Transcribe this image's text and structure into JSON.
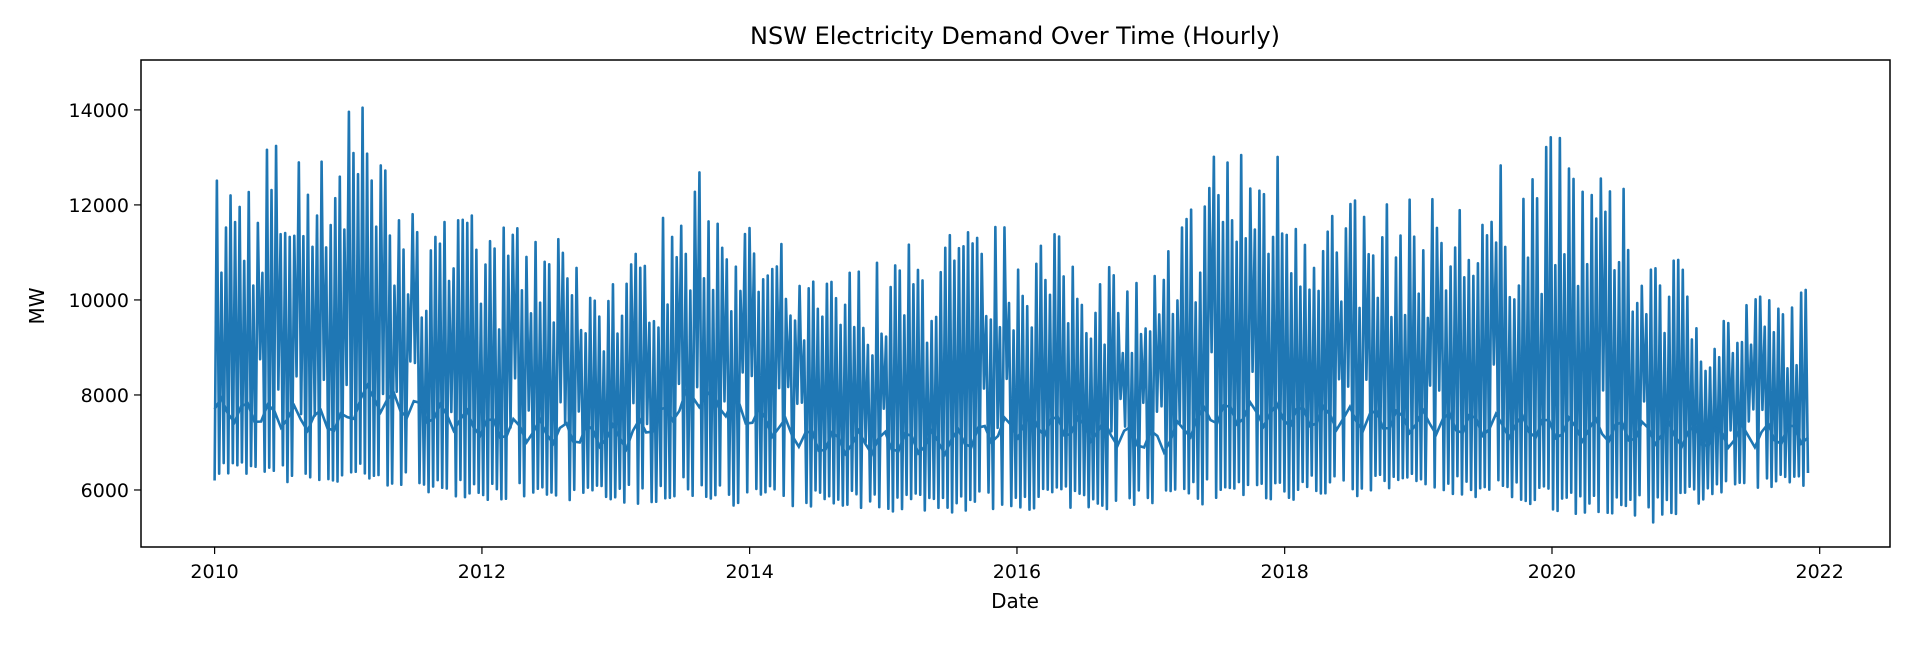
{
  "chart_data": {
    "type": "line",
    "title": "NSW Electricity Demand Over Time (Hourly)",
    "xlabel": "Date",
    "ylabel": "MW",
    "x_ticks": [
      "2010",
      "2012",
      "2014",
      "2016",
      "2018",
      "2020",
      "2022"
    ],
    "y_ticks": [
      "6000",
      "8000",
      "10000",
      "12000",
      "14000"
    ],
    "xlim": [
      "2009-06-14",
      "2022-07-12"
    ],
    "ylim": [
      4800,
      15050
    ],
    "grid": false,
    "legend": "none",
    "series_color": "#1f77b4",
    "series": [
      {
        "x": [
          "2010-01-01",
          "2010-12-31",
          "2011-01-31",
          "2011-06-30",
          "2012-01-31",
          "2013-01-31",
          "2013-08-15",
          "2014-06-30",
          "2015-06-30",
          "2016-01-31",
          "2016-06-30",
          "2017-01-31",
          "2017-06-10",
          "2017-09-30",
          "2018-06-30",
          "2019-03-31",
          "2020-01-01",
          "2020-10-15",
          "2021-02-28",
          "2021-11-30"
        ],
        "high": [
          12700,
          14500,
          14400,
          12000,
          11800,
          10800,
          12900,
          10500,
          11600,
          11700,
          11200,
          10700,
          13600,
          13900,
          12100,
          12200,
          13600,
          11800,
          9950,
          10300
        ],
        "low": [
          6200,
          6000,
          6100,
          6000,
          5750,
          5700,
          5700,
          5600,
          5500,
          5550,
          5600,
          5600,
          5700,
          5700,
          5850,
          5900,
          5550,
          5300,
          5800,
          6100
        ],
        "mid": [
          7700,
          7400,
          8000,
          7700,
          7300,
          7100,
          8000,
          7000,
          7000,
          7400,
          7300,
          7000,
          7600,
          7600,
          7500,
          7400,
          7300,
          7200,
          7100,
          7200
        ]
      }
    ]
  }
}
